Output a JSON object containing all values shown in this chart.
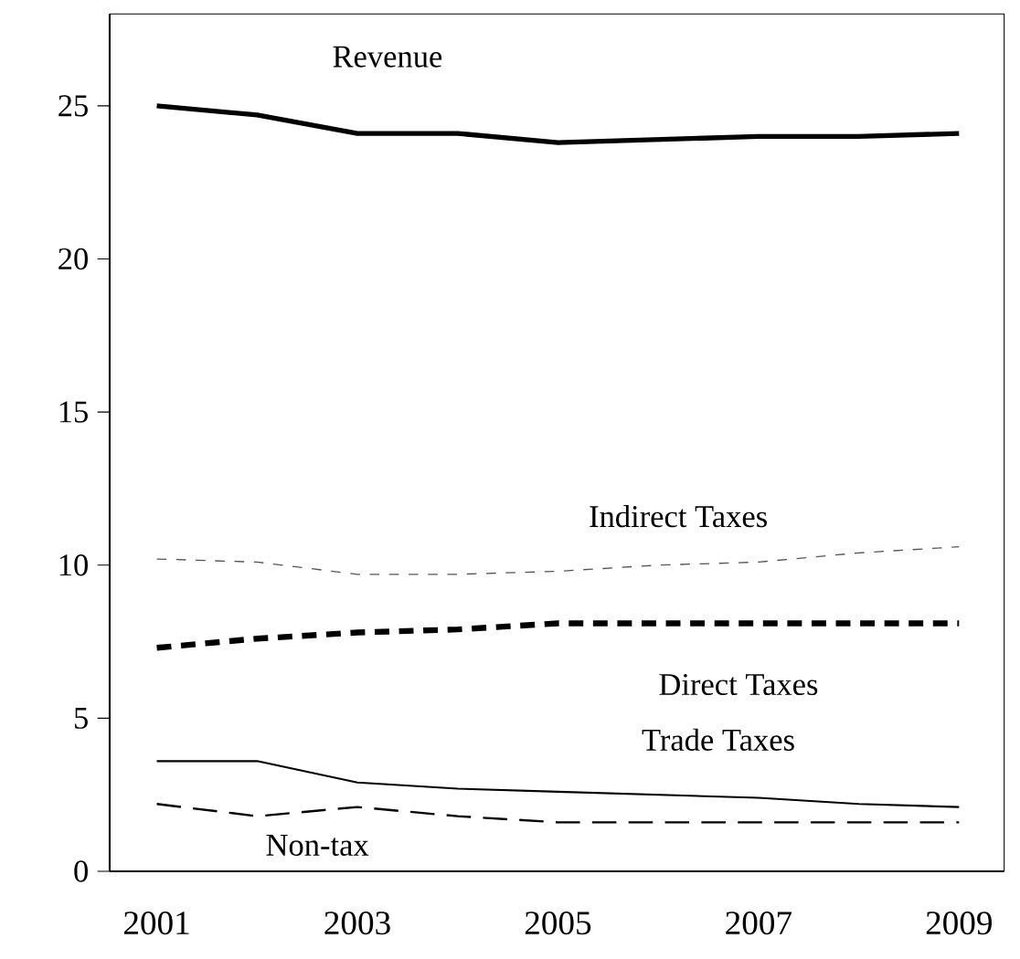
{
  "chart_data": {
    "type": "line",
    "categories": [
      "2001",
      null,
      "2003",
      null,
      "2005",
      null,
      "2007",
      null,
      "2009"
    ],
    "series": [
      {
        "name": "Revenue",
        "color": "#000000",
        "line_style": "solid",
        "values": [
          25.0,
          24.7,
          24.1,
          24.1,
          23.8,
          23.9,
          24.0,
          24.0,
          24.1
        ]
      },
      {
        "name": "Indirect Taxes",
        "color": "#555555",
        "line_style": "dashed",
        "values": [
          10.2,
          10.1,
          9.7,
          9.7,
          9.8,
          10.0,
          10.1,
          10.4,
          10.6
        ]
      },
      {
        "name": "Direct Taxes",
        "color": "#000000",
        "line_style": "dashed",
        "values": [
          7.3,
          7.6,
          7.8,
          7.9,
          8.1,
          8.1,
          8.1,
          8.1,
          8.1
        ]
      },
      {
        "name": "Trade Taxes",
        "color": "#000000",
        "line_style": "solid",
        "values": [
          3.6,
          3.6,
          2.9,
          2.7,
          2.6,
          2.5,
          2.4,
          2.2,
          2.1
        ]
      },
      {
        "name": "Non-tax",
        "color": "#000000",
        "line_style": "dashed",
        "values": [
          2.2,
          1.8,
          2.1,
          1.8,
          1.6,
          1.6,
          1.6,
          1.6,
          1.6
        ]
      }
    ],
    "ylim": [
      0,
      28
    ],
    "yticks": [
      0,
      5,
      10,
      15,
      20,
      25
    ],
    "grid": false,
    "legend": false,
    "marker": "none"
  }
}
